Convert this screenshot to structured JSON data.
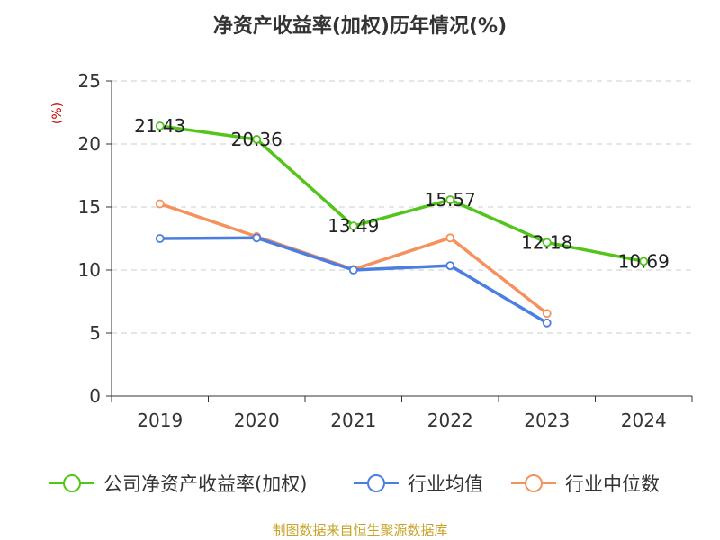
{
  "chart_data": {
    "type": "line",
    "title": "净资产收益率(加权)历年情况(%)",
    "ylabel": "(%)",
    "xlabel": "",
    "categories": [
      "2019",
      "2020",
      "2021",
      "2022",
      "2023",
      "2024"
    ],
    "ylim": [
      0,
      25
    ],
    "yticks": [
      0,
      5,
      10,
      15,
      20,
      25
    ],
    "grid": true,
    "legend": "bottom",
    "series": [
      {
        "name": "公司净资产收益率(加权)",
        "color": "#52c41a",
        "values": [
          21.43,
          20.36,
          13.49,
          15.57,
          12.18,
          10.69
        ],
        "labels": [
          "21.43",
          "20.36",
          "13.49",
          "15.57",
          "12.18",
          "10.69"
        ]
      },
      {
        "name": "行业均值",
        "color": "#4a7ee0",
        "values": [
          12.5,
          12.55,
          10.0,
          10.35,
          5.8,
          null
        ]
      },
      {
        "name": "行业中位数",
        "color": "#f5915c",
        "values": [
          15.25,
          12.65,
          10.05,
          12.55,
          6.55,
          null
        ]
      }
    ],
    "source": "制图数据来自恒生聚源数据库"
  },
  "colors": {
    "axis": "#333333",
    "grid": "#cccccc",
    "ylabel": "#cc0000",
    "source": "#c9a227"
  }
}
